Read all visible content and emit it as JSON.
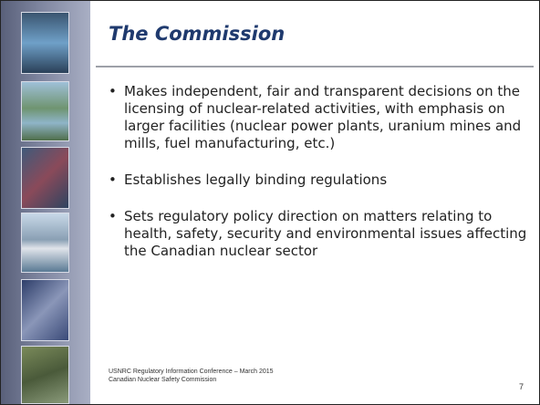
{
  "slide": {
    "title": "The Commission",
    "bullets": [
      "Makes independent, fair and transparent decisions on the licensing of nuclear-related activities, with emphasis on larger facilities (nuclear power plants, uranium mines and mills, fuel manufacturing, etc.)",
      "Establishes legally binding regulations",
      "Sets regulatory policy direction on matters relating to health, safety, security and environmental issues affecting the Canadian nuclear sector"
    ],
    "footer": [
      "USNRC Regulatory Information Conference – March 2015",
      "Canadian Nuclear Safety Commission"
    ],
    "page_number": "7"
  }
}
